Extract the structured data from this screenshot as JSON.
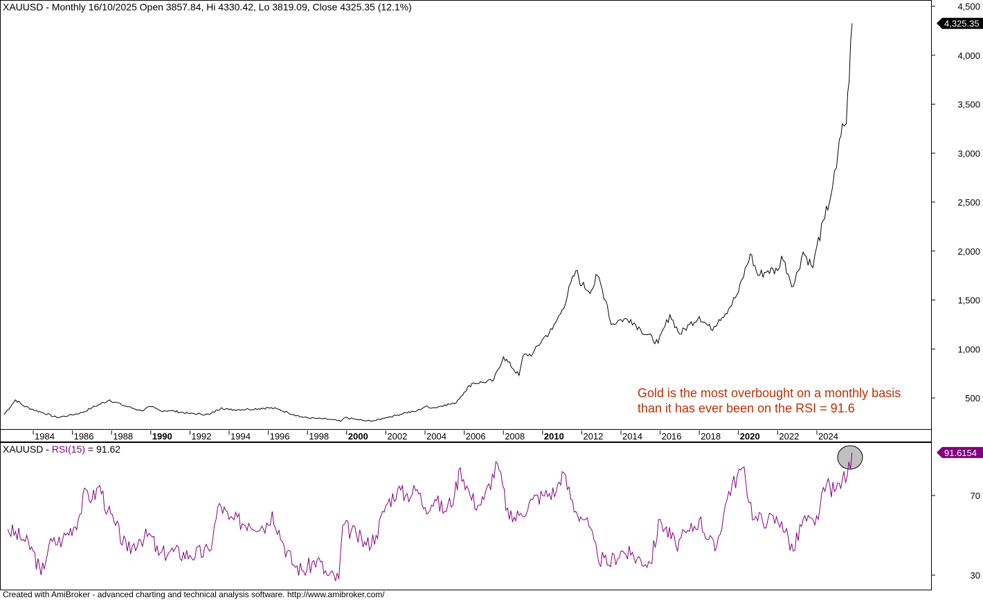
{
  "header": {
    "title": "XAUUSD - Monthly 16/10/2025 Open 3857.84, Hi 4330.42, Lo 3819.09, Close 4325.35 (12.1%)"
  },
  "rsi_header": {
    "prefix": "XAUUSD - ",
    "indicator": "RSI(15)",
    "value_text": " = 91.62"
  },
  "annotation": {
    "line1": "Gold is the most overbought on a monthly basis",
    "line2": "than it has ever been on the RSI = 91.6"
  },
  "footer": "Created with AmiBroker - advanced charting and technical analysis software. http://www.amibroker.com/",
  "colors": {
    "price": "#000000",
    "rsi": "#800080",
    "annotation": "#b83208",
    "highlight": "#c0c0c0"
  },
  "chart_data": [
    {
      "type": "line",
      "title": "XAUUSD Monthly",
      "series_name": "Close",
      "last_value_label": "4,325.35",
      "ylim": [
        0,
        4500
      ],
      "y_ticks": [
        500,
        1000,
        1500,
        2000,
        2500,
        3000,
        3500,
        4000,
        4500
      ],
      "y_tick_labels": [
        "500",
        "1,000",
        "1,500",
        "2,000",
        "2,500",
        "3,000",
        "3,500",
        "4,000",
        "4,500"
      ],
      "x_ticks": [
        1984,
        1986,
        1988,
        1990,
        1992,
        1994,
        1996,
        1998,
        2000,
        2002,
        2004,
        2006,
        2008,
        2010,
        2012,
        2014,
        2016,
        2018,
        2020,
        2022,
        2024
      ],
      "x_bold": [
        1990,
        2000,
        2010,
        2020
      ],
      "points": [
        [
          1982.5,
          330
        ],
        [
          1983.1,
          480
        ],
        [
          1983.5,
          420
        ],
        [
          1984,
          380
        ],
        [
          1984.5,
          350
        ],
        [
          1985.2,
          300
        ],
        [
          1985.8,
          320
        ],
        [
          1986.5,
          350
        ],
        [
          1987,
          400
        ],
        [
          1987.9,
          480
        ],
        [
          1988.5,
          430
        ],
        [
          1989,
          400
        ],
        [
          1989.5,
          370
        ],
        [
          1990,
          410
        ],
        [
          1990.5,
          370
        ],
        [
          1991,
          370
        ],
        [
          1992,
          340
        ],
        [
          1993,
          330
        ],
        [
          1993.6,
          400
        ],
        [
          1994,
          380
        ],
        [
          1995,
          385
        ],
        [
          1996,
          400
        ],
        [
          1996.5,
          385
        ],
        [
          1997,
          350
        ],
        [
          1997.8,
          300
        ],
        [
          1998.5,
          290
        ],
        [
          1999.2,
          280
        ],
        [
          1999.7,
          260
        ],
        [
          1999.9,
          300
        ],
        [
          2000.5,
          280
        ],
        [
          2001,
          265
        ],
        [
          2001.5,
          270
        ],
        [
          2002,
          300
        ],
        [
          2002.5,
          320
        ],
        [
          2003,
          350
        ],
        [
          2003.5,
          360
        ],
        [
          2004,
          410
        ],
        [
          2004.5,
          400
        ],
        [
          2005,
          430
        ],
        [
          2005.5,
          440
        ],
        [
          2006,
          560
        ],
        [
          2006.4,
          650
        ],
        [
          2007,
          660
        ],
        [
          2007.5,
          680
        ],
        [
          2008,
          920
        ],
        [
          2008.8,
          730
        ],
        [
          2009,
          930
        ],
        [
          2009.5,
          950
        ],
        [
          2010,
          1100
        ],
        [
          2010.5,
          1200
        ],
        [
          2011,
          1400
        ],
        [
          2011.7,
          1800
        ],
        [
          2012,
          1650
        ],
        [
          2012.5,
          1600
        ],
        [
          2012.8,
          1750
        ],
        [
          2013.3,
          1450
        ],
        [
          2013.5,
          1250
        ],
        [
          2014,
          1300
        ],
        [
          2014.5,
          1300
        ],
        [
          2015,
          1200
        ],
        [
          2015.9,
          1060
        ],
        [
          2016.5,
          1350
        ],
        [
          2017,
          1150
        ],
        [
          2017.5,
          1250
        ],
        [
          2018,
          1330
        ],
        [
          2018.6,
          1200
        ],
        [
          2019,
          1300
        ],
        [
          2019.5,
          1410
        ],
        [
          2020,
          1580
        ],
        [
          2020.6,
          1970
        ],
        [
          2021,
          1750
        ],
        [
          2021.5,
          1800
        ],
        [
          2022,
          1800
        ],
        [
          2022.2,
          1950
        ],
        [
          2022.8,
          1640
        ],
        [
          2023.3,
          1990
        ],
        [
          2023.8,
          1830
        ],
        [
          2024,
          2050
        ],
        [
          2024.4,
          2330
        ],
        [
          2024.8,
          2650
        ],
        [
          2025,
          2850
        ],
        [
          2025.3,
          3300
        ],
        [
          2025.5,
          3300
        ],
        [
          2025.8,
          4325.35
        ]
      ]
    },
    {
      "type": "line",
      "title": "RSI(15)",
      "last_value_label": "91.6154",
      "y_ticks": [
        30,
        70
      ],
      "y_tick_labels": [
        "30",
        "70"
      ],
      "points": [
        [
          1982.7,
          53
        ],
        [
          1983.5,
          48
        ],
        [
          1984,
          42
        ],
        [
          1984.4,
          30
        ],
        [
          1984.8,
          45
        ],
        [
          1985.5,
          48
        ],
        [
          1986.3,
          58
        ],
        [
          1986.7,
          73
        ],
        [
          1987,
          68
        ],
        [
          1987.4,
          75
        ],
        [
          1987.8,
          62
        ],
        [
          1988.2,
          55
        ],
        [
          1988.8,
          42
        ],
        [
          1989.4,
          48
        ],
        [
          1990,
          50
        ],
        [
          1990.4,
          40
        ],
        [
          1991,
          42
        ],
        [
          1992,
          40
        ],
        [
          1993,
          42
        ],
        [
          1993.5,
          66
        ],
        [
          1994,
          58
        ],
        [
          1995,
          56
        ],
        [
          1996,
          55
        ],
        [
          1996.2,
          62
        ],
        [
          1996.8,
          45
        ],
        [
          1997.3,
          35
        ],
        [
          1997.8,
          32
        ],
        [
          1998.5,
          38
        ],
        [
          1999,
          30
        ],
        [
          1999.6,
          28
        ],
        [
          1999.8,
          55
        ],
        [
          2000.5,
          50
        ],
        [
          2001,
          45
        ],
        [
          2001.5,
          50
        ],
        [
          2002,
          65
        ],
        [
          2002.6,
          73
        ],
        [
          2003,
          70
        ],
        [
          2003.6,
          73
        ],
        [
          2004,
          64
        ],
        [
          2004.5,
          68
        ],
        [
          2005,
          62
        ],
        [
          2005.5,
          70
        ],
        [
          2005.8,
          84
        ],
        [
          2006.3,
          70
        ],
        [
          2006.7,
          65
        ],
        [
          2007,
          68
        ],
        [
          2007.7,
          86
        ],
        [
          2008.3,
          58
        ],
        [
          2008.8,
          60
        ],
        [
          2009.5,
          68
        ],
        [
          2010,
          70
        ],
        [
          2010.7,
          72
        ],
        [
          2011,
          82
        ],
        [
          2011.7,
          62
        ],
        [
          2012.2,
          58
        ],
        [
          2012.8,
          40
        ],
        [
          2013.3,
          35
        ],
        [
          2014,
          42
        ],
        [
          2014.5,
          40
        ],
        [
          2015.5,
          36
        ],
        [
          2016,
          58
        ],
        [
          2016.8,
          45
        ],
        [
          2017.5,
          52
        ],
        [
          2018,
          58
        ],
        [
          2018.8,
          42
        ],
        [
          2019.5,
          72
        ],
        [
          2020.2,
          84
        ],
        [
          2020.8,
          58
        ],
        [
          2021.5,
          58
        ],
        [
          2022.2,
          57
        ],
        [
          2022.8,
          42
        ],
        [
          2023.3,
          58
        ],
        [
          2023.9,
          55
        ],
        [
          2024.5,
          76
        ],
        [
          2024.9,
          72
        ],
        [
          2025.3,
          78
        ],
        [
          2025.55,
          80
        ],
        [
          2025.8,
          91.6154
        ]
      ]
    }
  ]
}
